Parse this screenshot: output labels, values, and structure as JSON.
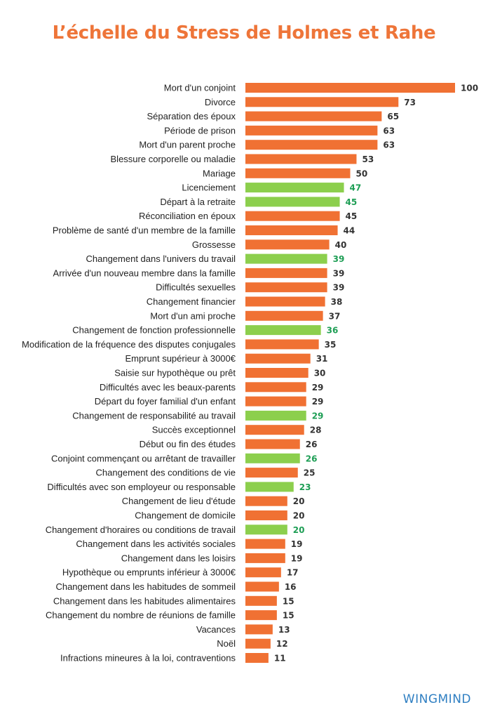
{
  "chart_data": {
    "type": "bar",
    "orientation": "horizontal",
    "title": "L’échelle du Stress de Holmes et Rahe",
    "xlabel": "",
    "ylabel": "",
    "xlim": [
      0,
      100
    ],
    "grid": false,
    "legend": "none",
    "colors": {
      "default": "#f07133",
      "highlight": "#8ccf4d",
      "value_default": "#333333",
      "value_highlight": "#1e9e55"
    },
    "categories": [
      "Mort d'un conjoint",
      "Divorce",
      "Séparation des époux",
      "Période de prison",
      "Mort d'un parent proche",
      "Blessure corporelle ou maladie",
      "Mariage",
      "Licenciement",
      "Départ à la retraite",
      "Réconciliation en époux",
      "Problème de santé d'un membre de la famille",
      "Grossesse",
      "Changement dans l'univers du travail",
      "Arrivée d'un nouveau membre dans la famille",
      "Difficultés sexuelles",
      "Changement financier",
      "Mort d'un ami proche",
      "Changement de fonction professionnelle",
      "Modification de la fréquence des disputes conjugales",
      "Emprunt supérieur à 3000€",
      "Saisie sur hypothèque ou prêt",
      "Difficultés avec les beaux-parents",
      "Départ du foyer familial d'un enfant",
      "Changement de responsabilité au travail",
      "Succès exceptionnel",
      "Début ou fin des études",
      "Conjoint commençant ou arrêtant de travailler",
      "Changement des conditions de vie",
      "Difficultés avec son employeur ou responsable",
      "Changement de lieu d'étude",
      "Changement de domicile",
      "Changement d'horaires ou conditions de travail",
      "Changement dans les activités sociales",
      "Changement dans les loisirs",
      "Hypothèque ou emprunts inférieur à 3000€",
      "Changement dans les habitudes de sommeil",
      "Changement dans les habitudes alimentaires",
      "Changement du nombre de réunions de famille",
      "Vacances",
      "Noël",
      "Infractions mineures à la loi, contraventions"
    ],
    "values": [
      100,
      73,
      65,
      63,
      63,
      53,
      50,
      47,
      45,
      45,
      44,
      40,
      39,
      39,
      39,
      38,
      37,
      36,
      35,
      31,
      30,
      29,
      29,
      29,
      28,
      26,
      26,
      25,
      23,
      20,
      20,
      20,
      19,
      19,
      17,
      16,
      15,
      15,
      13,
      12,
      11
    ],
    "highlighted": [
      false,
      false,
      false,
      false,
      false,
      false,
      false,
      true,
      true,
      false,
      false,
      false,
      true,
      false,
      false,
      false,
      false,
      true,
      false,
      false,
      false,
      false,
      false,
      true,
      false,
      false,
      true,
      false,
      true,
      false,
      false,
      true,
      false,
      false,
      false,
      false,
      false,
      false,
      false,
      false,
      false
    ]
  },
  "brand": "WINGMIND"
}
